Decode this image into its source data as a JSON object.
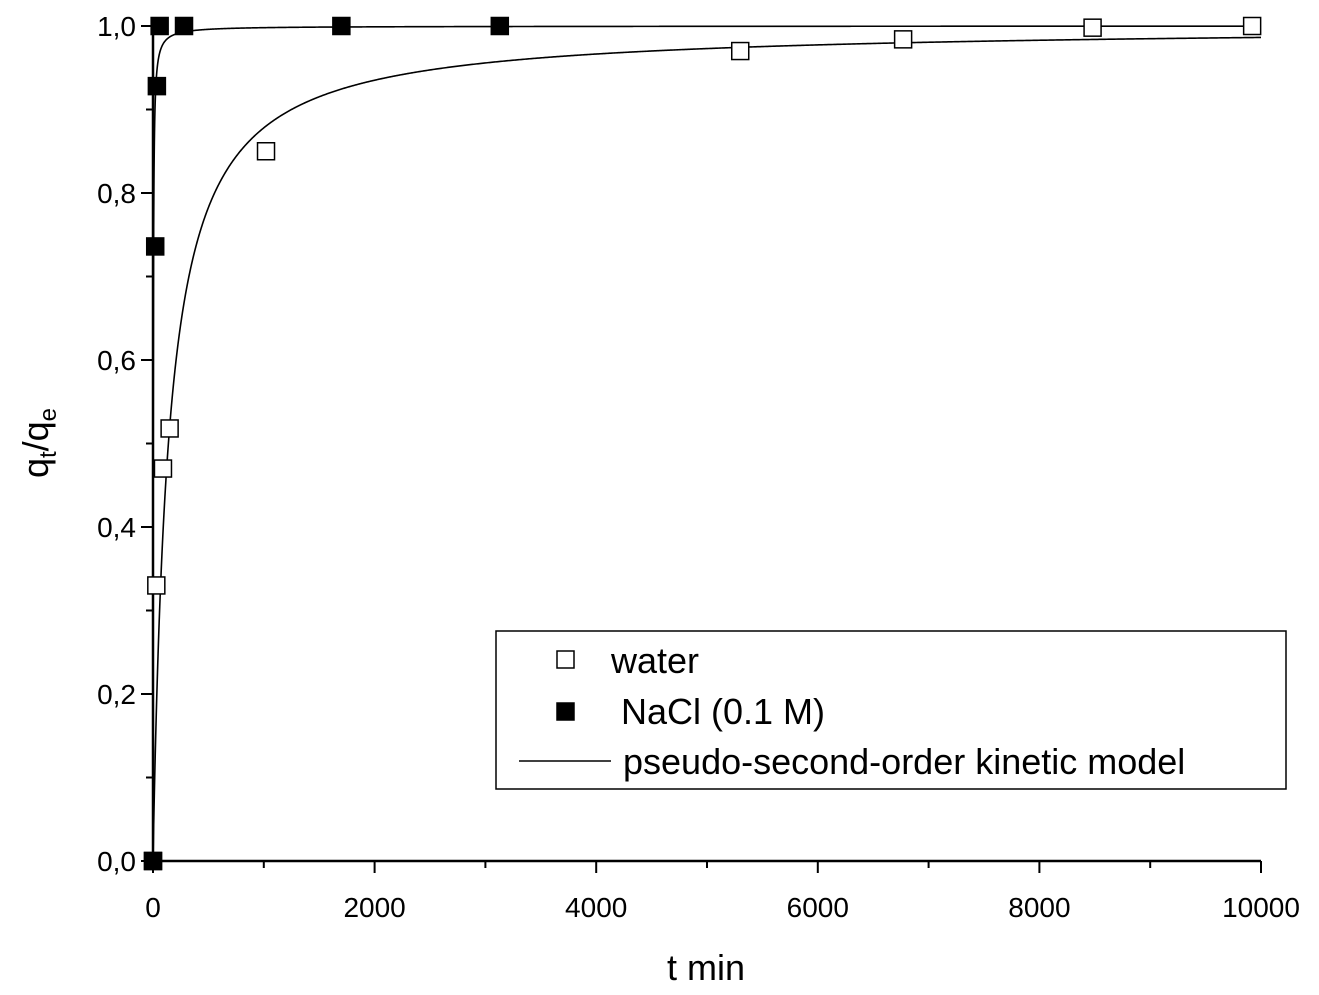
{
  "chart_data": {
    "type": "scatter",
    "title": "",
    "xlabel": "t min",
    "ylabel": {
      "main": "q",
      "sub1": "t",
      "slash": "/q",
      "sub2": "e"
    },
    "xlim": [
      0,
      10000
    ],
    "ylim": [
      0,
      1.0
    ],
    "x_ticks": [
      0,
      2000,
      4000,
      6000,
      8000,
      10000
    ],
    "x_tick_labels": [
      "0",
      "2000",
      "4000",
      "6000",
      "8000",
      "10000"
    ],
    "y_ticks": [
      0,
      0.2,
      0.4,
      0.6,
      0.8,
      1.0
    ],
    "y_tick_labels": [
      "0,0",
      "0,2",
      "0,4",
      "0,6",
      "0,8",
      "1,0"
    ],
    "grid": false,
    "legend_position": "bottom-right",
    "series": [
      {
        "name": "water",
        "marker": "open-square",
        "x": [
          0,
          30,
          90,
          150,
          1020,
          5300,
          6770,
          8480,
          9920
        ],
        "y": [
          0.0,
          0.33,
          0.47,
          0.518,
          0.85,
          0.97,
          0.984,
          0.998,
          1.0
        ]
      },
      {
        "name": " NaCl (0.1 M)",
        "marker": "filled-square",
        "x": [
          0,
          20,
          35,
          60,
          280,
          1700,
          3130
        ],
        "y": [
          0.0,
          0.736,
          0.928,
          1.0,
          1.0,
          1.0,
          1.0
        ]
      },
      {
        "name": "pseudo-second-order kinetic model",
        "marker": "line",
        "fits": [
          {
            "for": "water",
            "qe": 1.0,
            "k": 0.0072
          },
          {
            "for": " NaCl (0.1 M)",
            "qe": 1.0,
            "k": 0.5
          }
        ]
      }
    ],
    "colors": {
      "axis": "#000000",
      "marker": "#000000",
      "background": "#ffffff"
    }
  }
}
